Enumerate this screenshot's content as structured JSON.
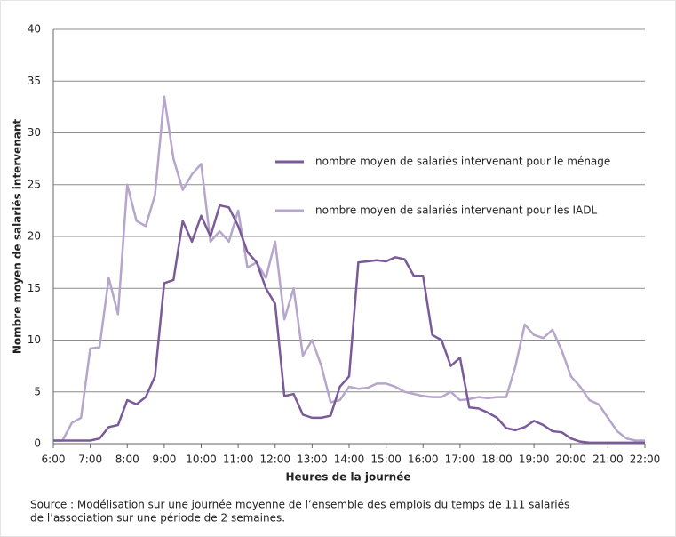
{
  "chart_data": {
    "type": "line",
    "xlabel": "Heures de la journée",
    "ylabel": "Nombre moyen de salariés intervenant",
    "source": [
      "Source : Modélisation sur une journée moyenne de l’ensemble des emplois du temps de 111 salariés",
      "de l’association sur une période de 2 semaines."
    ],
    "x": [
      6,
      6.25,
      6.5,
      6.75,
      7,
      7.25,
      7.5,
      7.75,
      8,
      8.25,
      8.5,
      8.75,
      9,
      9.25,
      9.5,
      9.75,
      10,
      10.25,
      10.5,
      10.75,
      11,
      11.25,
      11.5,
      11.75,
      12,
      12.25,
      12.5,
      12.75,
      13,
      13.25,
      13.5,
      13.75,
      14,
      14.25,
      14.5,
      14.75,
      15,
      15.25,
      15.5,
      15.75,
      16,
      16.25,
      16.5,
      16.75,
      17,
      17.25,
      17.5,
      17.75,
      18,
      18.25,
      18.5,
      18.75,
      19,
      19.25,
      19.5,
      19.75,
      20,
      20.25,
      20.5,
      20.75,
      21,
      21.25,
      21.5,
      21.75,
      22
    ],
    "series": [
      {
        "name": "nombre moyen de salariés intervenant pour le ménage",
        "color": "#7a5a98",
        "values": [
          0.3,
          0.3,
          0.3,
          0.3,
          0.3,
          0.5,
          1.6,
          1.8,
          4.2,
          3.8,
          4.5,
          6.5,
          15.5,
          15.8,
          21.5,
          19.5,
          22,
          20,
          23,
          22.8,
          21,
          18.5,
          17.5,
          15,
          13.5,
          4.6,
          4.8,
          2.8,
          2.5,
          2.5,
          2.7,
          5.5,
          6.5,
          17.5,
          17.6,
          17.7,
          17.6,
          18,
          17.8,
          16.2,
          16.2,
          10.5,
          10,
          7.5,
          8.3,
          3.5,
          3.4,
          3,
          2.5,
          1.5,
          1.3,
          1.6,
          2.2,
          1.8,
          1.2,
          1.1,
          0.5,
          0.2,
          0.1,
          0.1,
          0.1,
          0.1,
          0.1,
          0.1,
          0.1
        ]
      },
      {
        "name": "nombre moyen de salariés intervenant pour les IADL",
        "color": "#b6a6cb",
        "values": [
          0.3,
          0.3,
          2,
          2.5,
          9.2,
          9.3,
          16,
          12.5,
          25,
          21.5,
          21,
          24,
          33.5,
          27.5,
          24.5,
          26,
          27,
          19.5,
          20.5,
          19.5,
          22.5,
          17,
          17.5,
          16,
          19.5,
          12,
          15,
          8.5,
          10,
          7.5,
          4,
          4.2,
          5.5,
          5.3,
          5.4,
          5.8,
          5.8,
          5.5,
          5,
          4.8,
          4.6,
          4.5,
          4.5,
          5,
          4.2,
          4.3,
          4.5,
          4.4,
          4.5,
          4.5,
          7.5,
          11.5,
          10.5,
          10.2,
          11,
          9,
          6.5,
          5.5,
          4.2,
          3.8,
          2.5,
          1.2,
          0.5,
          0.3,
          0.3
        ]
      }
    ],
    "xlim": [
      6,
      22
    ],
    "xticks": [
      {
        "value": 6,
        "label": "6:00"
      },
      {
        "value": 7,
        "label": "7:00"
      },
      {
        "value": 8,
        "label": "8:00"
      },
      {
        "value": 9,
        "label": "9:00"
      },
      {
        "value": 10,
        "label": "10:00"
      },
      {
        "value": 11,
        "label": "11:00"
      },
      {
        "value": 12,
        "label": "12:00"
      },
      {
        "value": 13,
        "label": "13:00"
      },
      {
        "value": 14,
        "label": "14:00"
      },
      {
        "value": 15,
        "label": "15:00"
      },
      {
        "value": 16,
        "label": "16:00"
      },
      {
        "value": 17,
        "label": "17:00"
      },
      {
        "value": 18,
        "label": "18:00"
      },
      {
        "value": 19,
        "label": "19:00"
      },
      {
        "value": 20,
        "label": "20:00"
      },
      {
        "value": 21,
        "label": "21:00"
      },
      {
        "value": 22,
        "label": "22:00"
      }
    ],
    "ylim": [
      0,
      40
    ],
    "yticks": [
      0,
      5,
      10,
      15,
      20,
      25,
      30,
      35,
      40
    ],
    "grid": true,
    "legend": "right"
  }
}
